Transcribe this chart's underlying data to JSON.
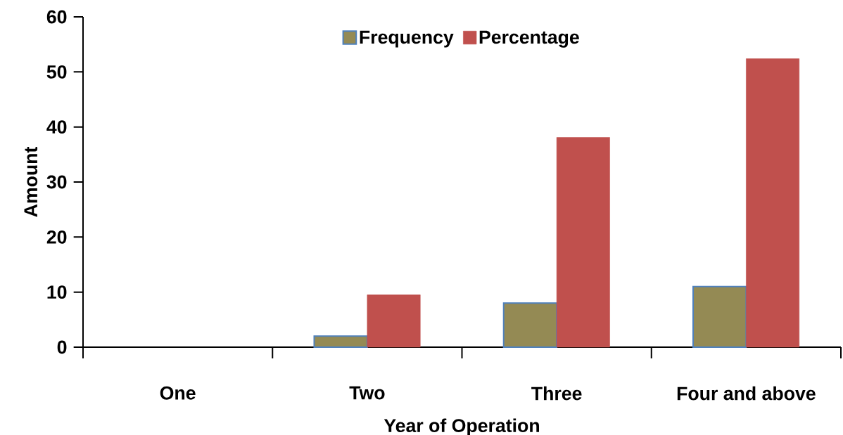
{
  "chart_data": {
    "type": "bar",
    "xlabel": "Year of Operation",
    "ylabel": "Amount",
    "categories": [
      "One",
      "Two",
      "Three",
      "Four and above"
    ],
    "series": [
      {
        "name": "Frequency",
        "color": "#948a54",
        "values": [
          0,
          2,
          8,
          11
        ]
      },
      {
        "name": "Percentage",
        "color": "#c0504d",
        "values": [
          0,
          9.5,
          38.1,
          52.4
        ]
      }
    ],
    "ylim": [
      0,
      60
    ],
    "yticks": [
      0,
      10,
      20,
      30,
      40,
      50,
      60
    ],
    "legend": "top",
    "grid": false
  }
}
